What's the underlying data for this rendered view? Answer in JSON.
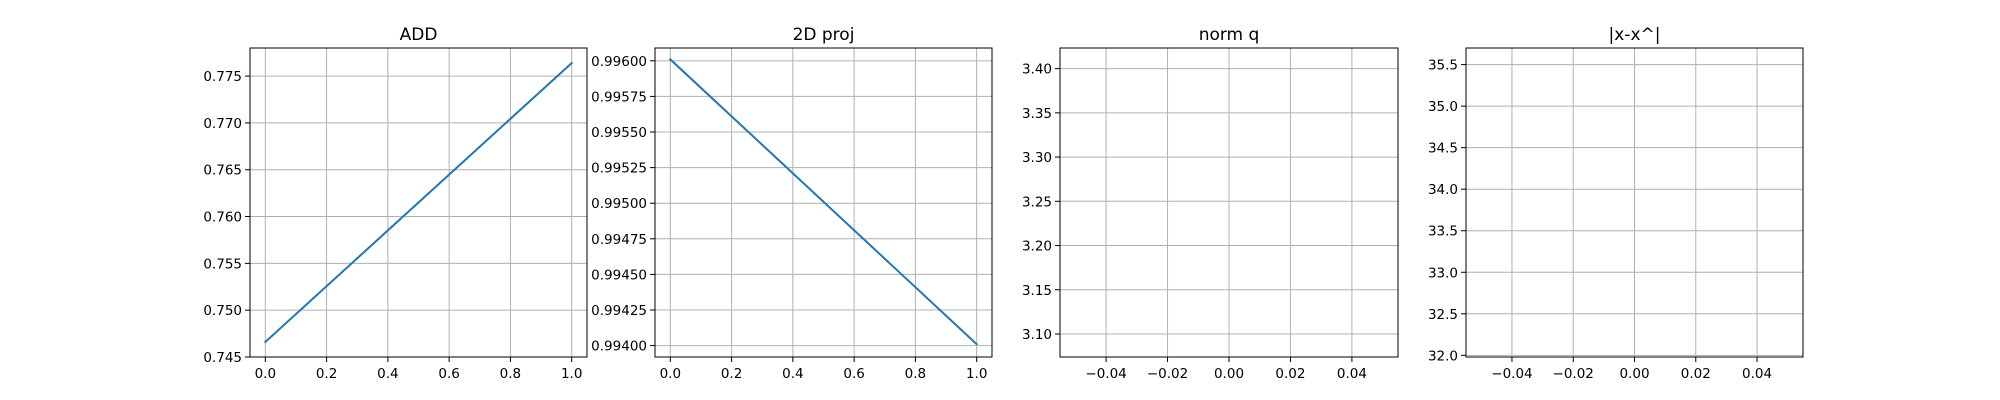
{
  "chart_data": [
    {
      "type": "line",
      "title": "ADD",
      "xlabel": "",
      "ylabel": "",
      "xlim": [
        -0.05,
        1.05
      ],
      "ylim": [
        0.745,
        0.778
      ],
      "xticks": [
        0.0,
        0.2,
        0.4,
        0.6,
        0.8,
        1.0
      ],
      "xtick_labels": [
        "0.0",
        "0.2",
        "0.4",
        "0.6",
        "0.8",
        "1.0"
      ],
      "yticks": [
        0.745,
        0.75,
        0.755,
        0.76,
        0.765,
        0.77,
        0.775
      ],
      "ytick_labels": [
        "0.745",
        "0.750",
        "0.755",
        "0.760",
        "0.765",
        "0.770",
        "0.775"
      ],
      "grid": true,
      "series": [
        {
          "color": "#1f77b4",
          "x": [
            0.0,
            1.0
          ],
          "y": [
            0.7466,
            0.7764
          ]
        }
      ]
    },
    {
      "type": "line",
      "title": "2D proj",
      "xlabel": "",
      "ylabel": "",
      "xlim": [
        -0.05,
        1.05
      ],
      "ylim": [
        0.99392,
        0.99609
      ],
      "xticks": [
        0.0,
        0.2,
        0.4,
        0.6,
        0.8,
        1.0
      ],
      "xtick_labels": [
        "0.0",
        "0.2",
        "0.4",
        "0.6",
        "0.8",
        "1.0"
      ],
      "yticks": [
        0.994,
        0.99425,
        0.9945,
        0.99475,
        0.995,
        0.99525,
        0.9955,
        0.99575,
        0.996
      ],
      "ytick_labels": [
        "0.99400",
        "0.99425",
        "0.99450",
        "0.99475",
        "0.99500",
        "0.99525",
        "0.99550",
        "0.99575",
        "0.99600"
      ],
      "grid": true,
      "series": [
        {
          "color": "#1f77b4",
          "x": [
            0.0,
            1.0
          ],
          "y": [
            0.99601,
            0.99401
          ]
        }
      ]
    },
    {
      "type": "line",
      "title": "norm q",
      "xlabel": "",
      "ylabel": "",
      "xlim": [
        -0.055,
        0.055
      ],
      "ylim": [
        3.074,
        3.4233
      ],
      "xticks": [
        -0.04,
        -0.02,
        0.0,
        0.02,
        0.04
      ],
      "xtick_labels": [
        "−0.04",
        "−0.02",
        "0.00",
        "0.02",
        "0.04"
      ],
      "yticks": [
        3.1,
        3.15,
        3.2,
        3.25,
        3.3,
        3.35,
        3.4
      ],
      "ytick_labels": [
        "3.10",
        "3.15",
        "3.20",
        "3.25",
        "3.30",
        "3.35",
        "3.40"
      ],
      "grid": true,
      "series": []
    },
    {
      "type": "line",
      "title": "|x-x^|",
      "xlabel": "",
      "ylabel": "",
      "xlim": [
        -0.055,
        0.055
      ],
      "ylim": [
        31.98,
        35.7
      ],
      "xticks": [
        -0.04,
        -0.02,
        0.0,
        0.02,
        0.04
      ],
      "xtick_labels": [
        "−0.04",
        "−0.02",
        "0.00",
        "0.02",
        "0.04"
      ],
      "yticks": [
        32.0,
        32.5,
        33.0,
        33.5,
        34.0,
        34.5,
        35.0,
        35.5
      ],
      "ytick_labels": [
        "32.0",
        "32.5",
        "33.0",
        "33.5",
        "34.0",
        "34.5",
        "35.0",
        "35.5"
      ],
      "grid": true,
      "series": []
    }
  ]
}
